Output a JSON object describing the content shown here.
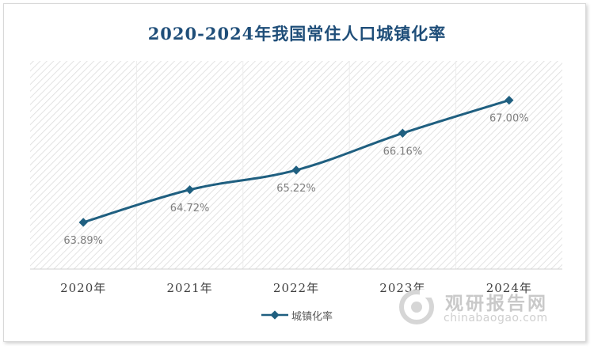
{
  "chart_data": {
    "type": "line",
    "title": "2020-2024年我国常住人口城镇化率",
    "categories": [
      "2020年",
      "2021年",
      "2022年",
      "2023年",
      "2024年"
    ],
    "series": [
      {
        "name": "城镇化率",
        "values": [
          63.89,
          64.72,
          65.22,
          66.16,
          67.0
        ],
        "data_labels": [
          "63.89%",
          "64.72%",
          "65.22%",
          "66.16%",
          "67.00%"
        ],
        "color": "#1f5f80"
      }
    ],
    "ylim": [
      62.7,
      68.0
    ],
    "legend_position": "bottom",
    "grid": false,
    "background_pattern": "diagonal-hatch"
  },
  "watermark": {
    "logo_text": "观研报告网",
    "url": "chinabaogao.com"
  }
}
